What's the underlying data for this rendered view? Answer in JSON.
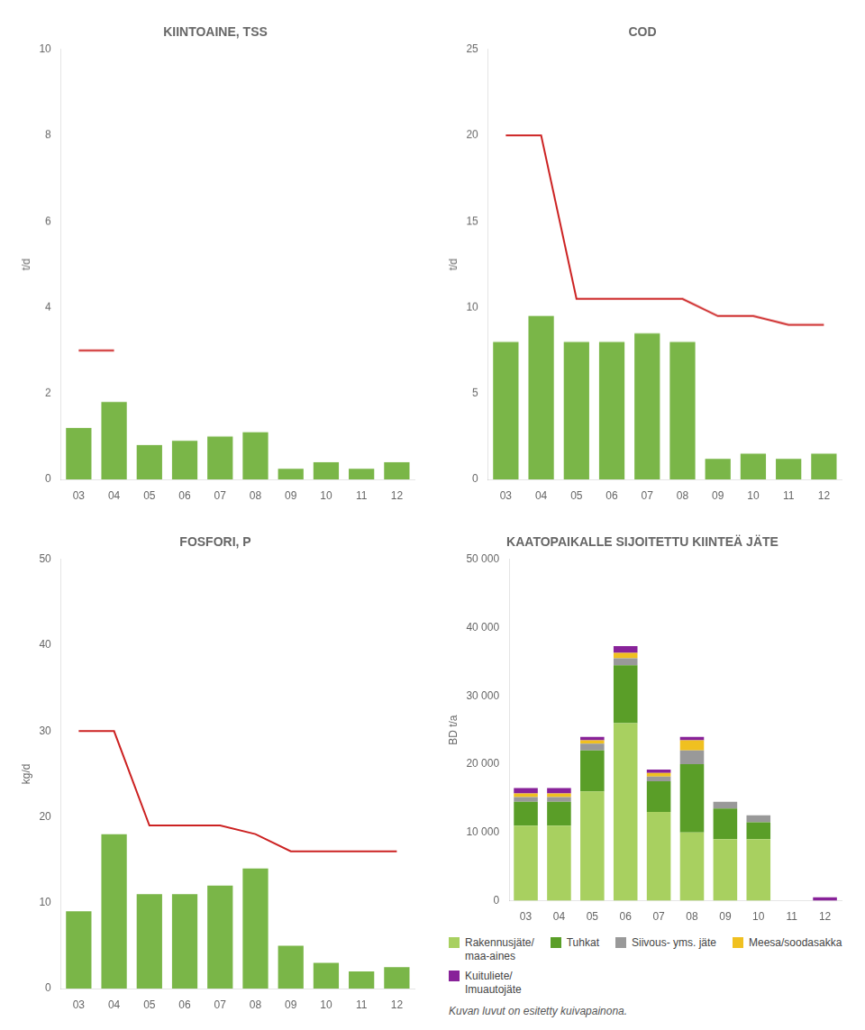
{
  "chart_data": [
    {
      "type": "bar",
      "title": "KIINTOAINE, TSS",
      "ylabel": "t/d",
      "categories": [
        "03",
        "04",
        "05",
        "06",
        "07",
        "08",
        "09",
        "10",
        "11",
        "12"
      ],
      "series": [
        {
          "type": "bar",
          "color": "#7ab648",
          "values": [
            1.2,
            1.8,
            0.8,
            0.9,
            1.0,
            1.1,
            0.25,
            0.4,
            0.25,
            0.4
          ]
        },
        {
          "type": "line",
          "color": "#cc2222",
          "values": [
            3.0,
            3.0,
            null,
            null,
            null,
            null,
            null,
            null,
            null,
            null
          ]
        }
      ],
      "ylim": [
        0,
        10
      ],
      "yticks": [
        0,
        2,
        4,
        6,
        8,
        10
      ],
      "grid": false
    },
    {
      "type": "bar",
      "title": "COD",
      "ylabel": "t/d",
      "categories": [
        "03",
        "04",
        "05",
        "06",
        "07",
        "08",
        "09",
        "10",
        "11",
        "12"
      ],
      "series": [
        {
          "type": "bar",
          "color": "#7ab648",
          "values": [
            8.0,
            9.5,
            8.0,
            8.0,
            8.5,
            8.0,
            1.2,
            1.5,
            1.2,
            1.5
          ]
        },
        {
          "type": "line",
          "color": "#cc2222",
          "values": [
            20.0,
            20.0,
            10.5,
            10.5,
            10.5,
            10.5,
            9.5,
            9.5,
            9.0,
            9.0
          ]
        }
      ],
      "ylim": [
        0,
        25
      ],
      "yticks": [
        0,
        5,
        10,
        15,
        20,
        25
      ],
      "grid": false
    },
    {
      "type": "bar",
      "title": "FOSFORI, P",
      "ylabel": "kg/d",
      "categories": [
        "03",
        "04",
        "05",
        "06",
        "07",
        "08",
        "09",
        "10",
        "11",
        "12"
      ],
      "series": [
        {
          "type": "bar",
          "color": "#7ab648",
          "values": [
            9.0,
            18.0,
            11.0,
            11.0,
            12.0,
            14.0,
            5.0,
            3.0,
            2.0,
            2.5
          ]
        },
        {
          "type": "line",
          "color": "#cc2222",
          "values": [
            30.0,
            30.0,
            19.0,
            19.0,
            19.0,
            18.0,
            16.0,
            16.0,
            16.0,
            16.0
          ]
        }
      ],
      "ylim": [
        0,
        50
      ],
      "yticks": [
        0,
        10,
        20,
        30,
        40,
        50
      ],
      "grid": false
    },
    {
      "type": "bar",
      "stacked": true,
      "title": "KAATOPAIKALLE SIJOITETTU KIINTEÄ JÄTE",
      "ylabel": "BD t/a",
      "categories": [
        "03",
        "04",
        "05",
        "06",
        "07",
        "08",
        "09",
        "10",
        "11",
        "12"
      ],
      "series": [
        {
          "name": "Rakennusjäte/\nmaa-aines",
          "color": "#a8d060",
          "values": [
            11000,
            11000,
            16000,
            26000,
            13000,
            10000,
            9000,
            9000,
            0,
            0
          ]
        },
        {
          "name": "Tuhkat",
          "color": "#5a9e28",
          "values": [
            3500,
            3500,
            6000,
            8500,
            4500,
            10000,
            4500,
            2500,
            0,
            0
          ]
        },
        {
          "name": "Siivous- yms. jäte",
          "color": "#999999",
          "values": [
            700,
            700,
            1000,
            1000,
            700,
            2000,
            1000,
            1000,
            0,
            0
          ]
        },
        {
          "name": "Meesa/soodasakka",
          "color": "#f0c020",
          "values": [
            500,
            500,
            500,
            800,
            500,
            1500,
            0,
            0,
            0,
            0
          ]
        },
        {
          "name": "Kuituliete/\nImuautojäte",
          "color": "#882299",
          "values": [
            800,
            800,
            500,
            1000,
            500,
            500,
            0,
            0,
            0,
            500
          ]
        }
      ],
      "ylim": [
        0,
        50000
      ],
      "yticks": [
        0,
        {
          "value": 10000,
          "label": "10 000"
        },
        {
          "value": 20000,
          "label": "20 000"
        },
        {
          "value": 30000,
          "label": "30 000"
        },
        {
          "value": 40000,
          "label": "40 000"
        },
        {
          "value": 50000,
          "label": "50 000"
        }
      ],
      "grid": false,
      "legend": "bottom",
      "annotations": [
        "Kuvan luvut on esitetty kuivapainona."
      ]
    }
  ]
}
